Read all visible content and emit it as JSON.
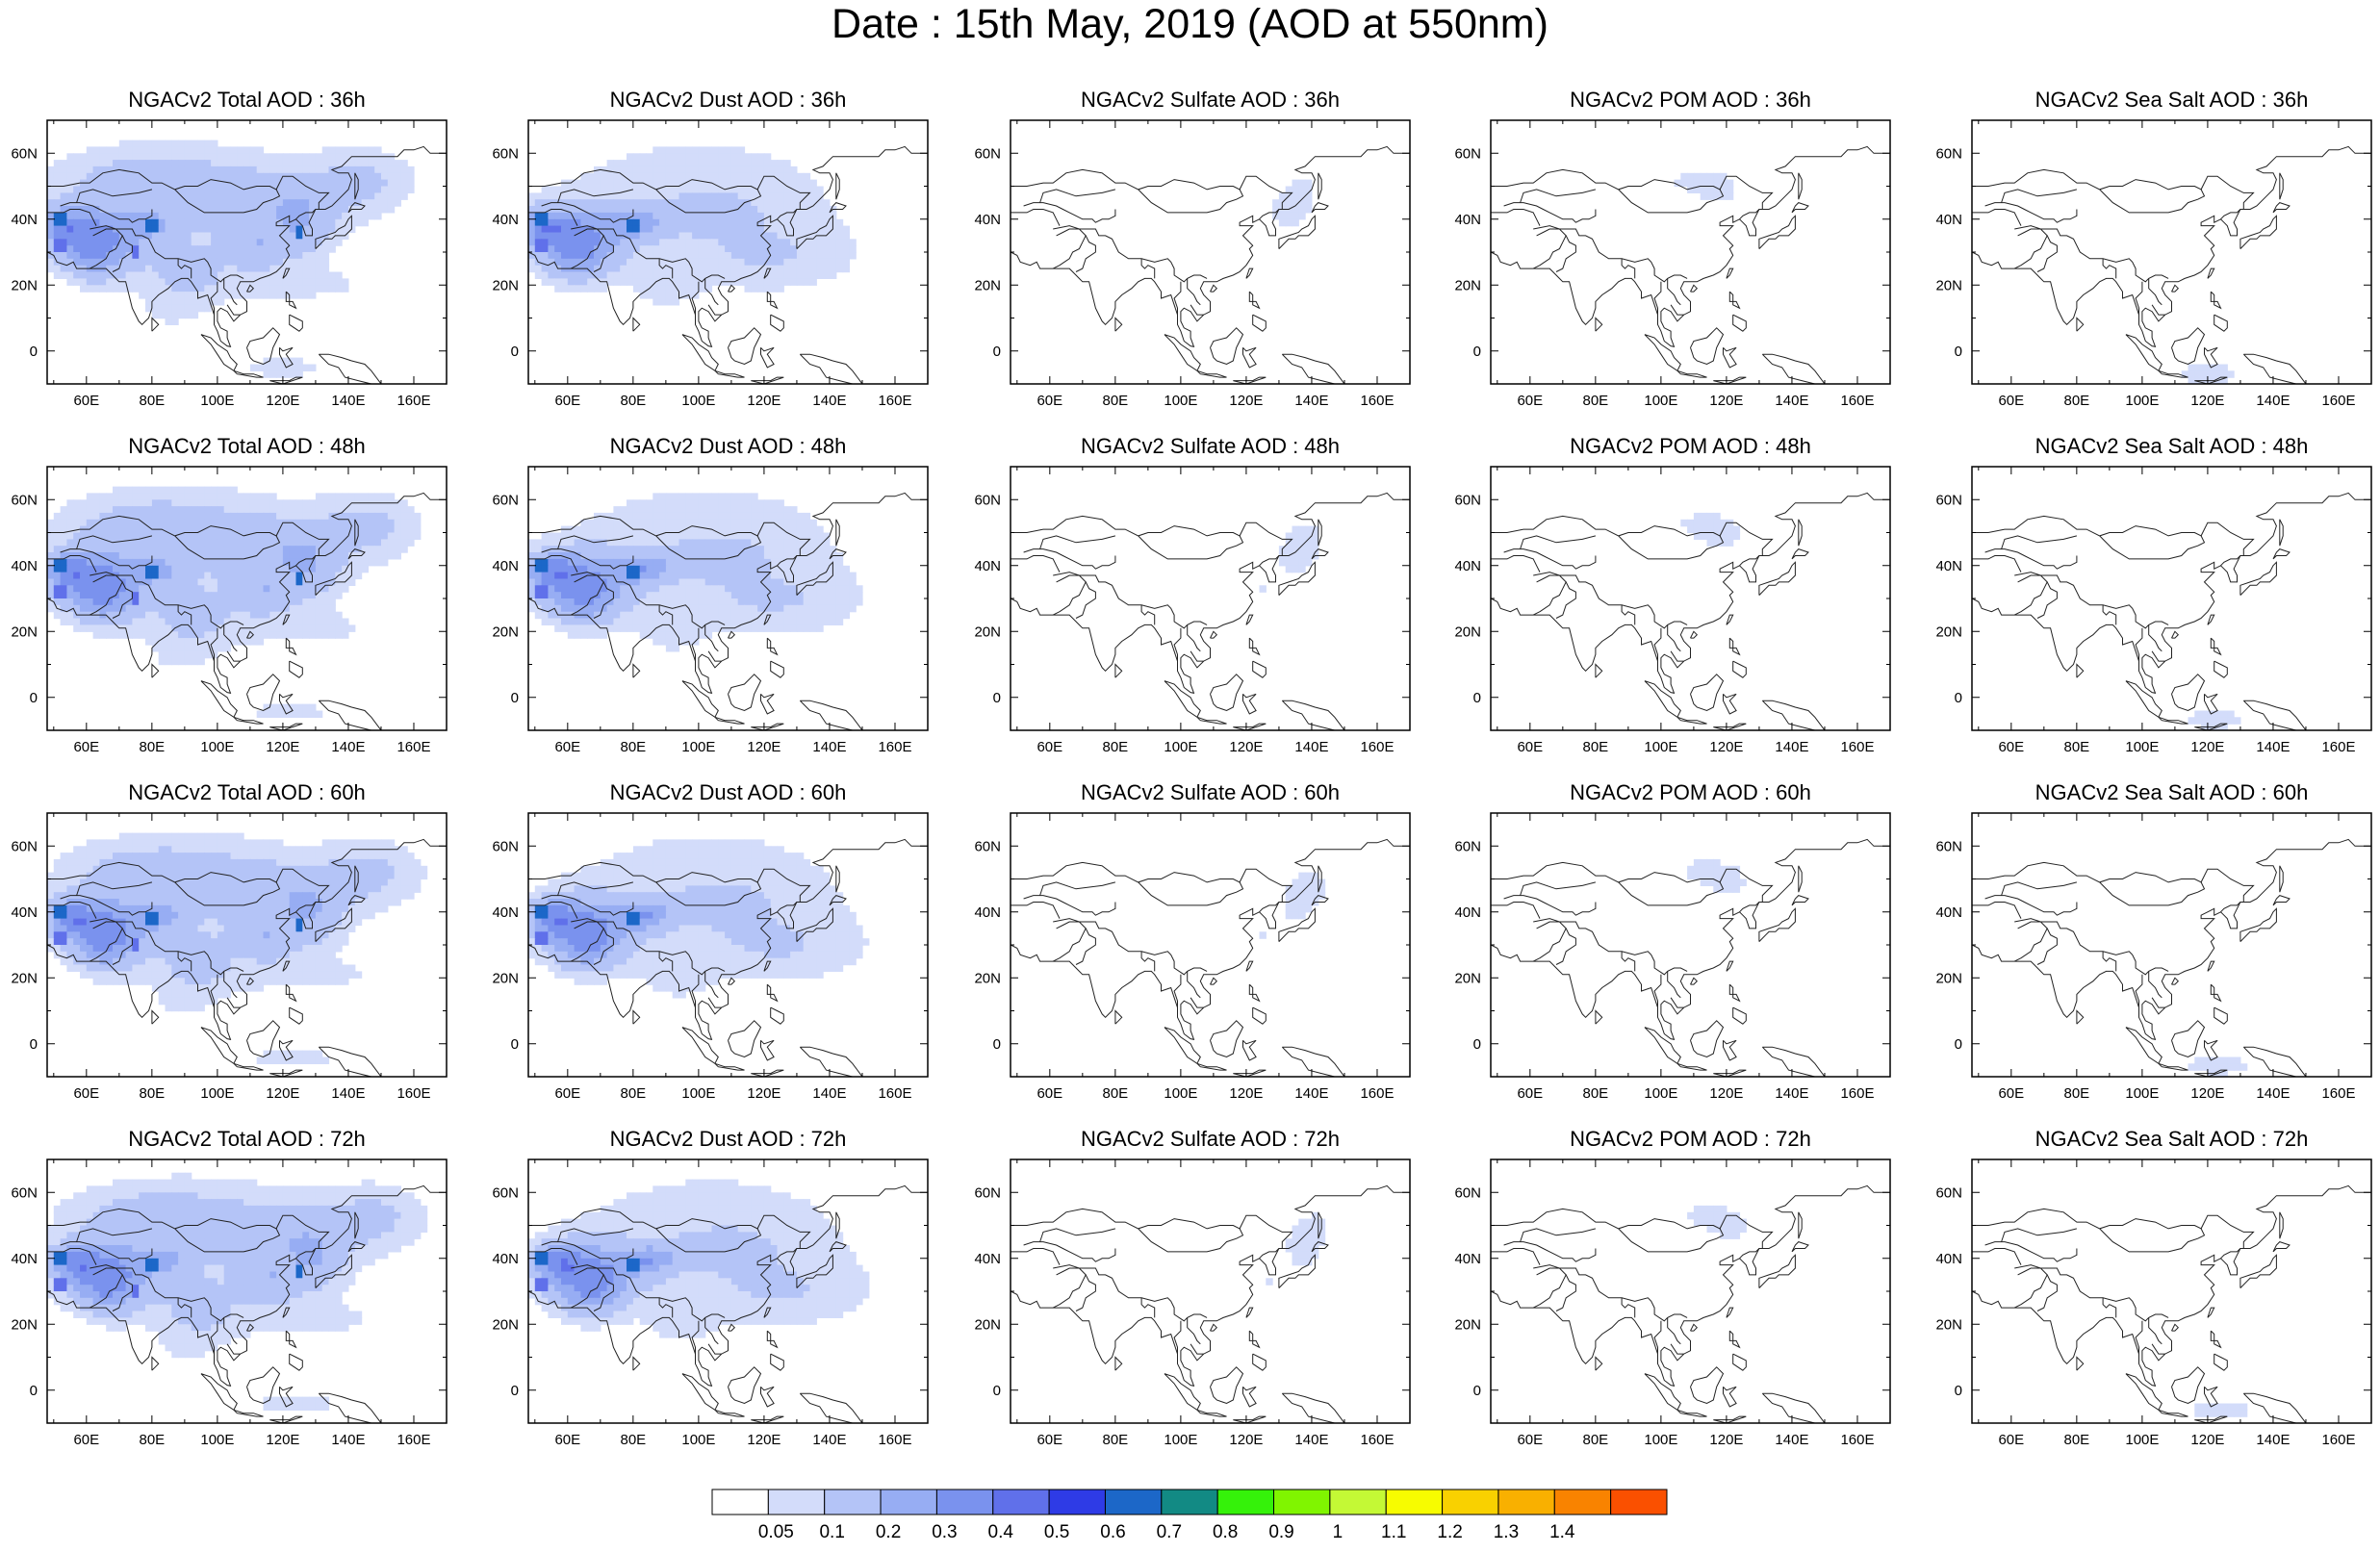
{
  "title": "Date : 15th May, 2019 (AOD at 550nm)",
  "chart_data": {
    "type": "heatmap",
    "title": "Date : 15th May, 2019 (AOD at 550nm)",
    "grid": false,
    "legend": "bottom",
    "x_ticks": [
      "60E",
      "80E",
      "100E",
      "120E",
      "140E",
      "160E"
    ],
    "y_ticks": [
      "60N",
      "40N",
      "20N",
      "0"
    ],
    "xlim": [
      48,
      170
    ],
    "ylim": [
      -10,
      70
    ],
    "colorbar": {
      "labels": [
        "0.05",
        "0.1",
        "0.2",
        "0.3",
        "0.4",
        "0.5",
        "0.6",
        "0.7",
        "0.8",
        "0.9",
        "1",
        "1.1",
        "1.2",
        "1.3",
        "1.4"
      ],
      "colors": [
        "#ffffff",
        "#d3dcfa",
        "#b4c4f7",
        "#97adf3",
        "#7a92ee",
        "#6070ea",
        "#2e3be6",
        "#1c67c8",
        "#128a84",
        "#35f20a",
        "#80f500",
        "#c4f935",
        "#f7fc00",
        "#f9d100",
        "#f9b000",
        "#f98300",
        "#fa5000"
      ]
    },
    "panels": [
      {
        "title": "NGACv2 Total AOD : 36h",
        "species": "total",
        "lead_hours": 36
      },
      {
        "title": "NGACv2 Dust AOD : 36h",
        "species": "dust",
        "lead_hours": 36
      },
      {
        "title": "NGACv2 Sulfate AOD : 36h",
        "species": "sulfate",
        "lead_hours": 36
      },
      {
        "title": "NGACv2 POM AOD : 36h",
        "species": "pom",
        "lead_hours": 36
      },
      {
        "title": "NGACv2 Sea Salt AOD : 36h",
        "species": "seasalt",
        "lead_hours": 36
      },
      {
        "title": "NGACv2 Total AOD : 48h",
        "species": "total",
        "lead_hours": 48
      },
      {
        "title": "NGACv2 Dust AOD : 48h",
        "species": "dust",
        "lead_hours": 48
      },
      {
        "title": "NGACv2 Sulfate AOD : 48h",
        "species": "sulfate",
        "lead_hours": 48
      },
      {
        "title": "NGACv2 POM AOD : 48h",
        "species": "pom",
        "lead_hours": 48
      },
      {
        "title": "NGACv2 Sea Salt AOD : 48h",
        "species": "seasalt",
        "lead_hours": 48
      },
      {
        "title": "NGACv2 Total AOD : 60h",
        "species": "total",
        "lead_hours": 60
      },
      {
        "title": "NGACv2 Dust AOD : 60h",
        "species": "dust",
        "lead_hours": 60
      },
      {
        "title": "NGACv2 Sulfate AOD : 60h",
        "species": "sulfate",
        "lead_hours": 60
      },
      {
        "title": "NGACv2 POM AOD : 60h",
        "species": "pom",
        "lead_hours": 60
      },
      {
        "title": "NGACv2 Sea Salt AOD : 60h",
        "species": "seasalt",
        "lead_hours": 60
      },
      {
        "title": "NGACv2 Total AOD : 72h",
        "species": "total",
        "lead_hours": 72
      },
      {
        "title": "NGACv2 Dust AOD : 72h",
        "species": "dust",
        "lead_hours": 72
      },
      {
        "title": "NGACv2 Sulfate AOD : 72h",
        "species": "sulfate",
        "lead_hours": 72
      },
      {
        "title": "NGACv2 POM AOD : 72h",
        "species": "pom",
        "lead_hours": 72
      },
      {
        "title": "NGACv2 Sea Salt  AOD : 72h",
        "species": "seasalt",
        "lead_hours": 72
      }
    ]
  }
}
